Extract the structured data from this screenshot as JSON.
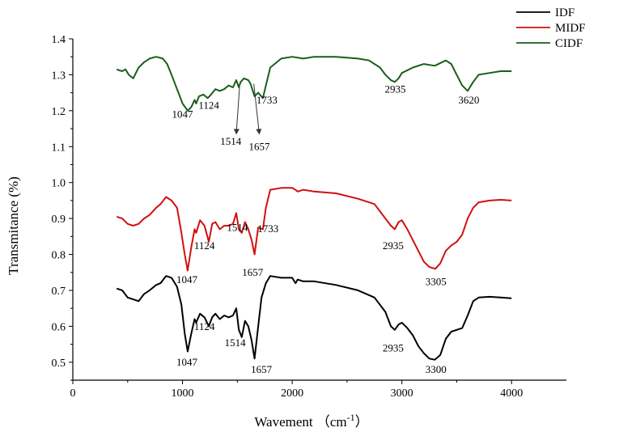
{
  "chart_data": {
    "type": "line",
    "xlabel": "Wavement （cm-1）",
    "xlabel_main": "Wavement （cm",
    "xlabel_sup": "-1",
    "xlabel_close": "）",
    "ylabel": "Transmitance (%)",
    "xlim": [
      0,
      4500
    ],
    "ylim": [
      0.45,
      1.4
    ],
    "xticks": [
      "0",
      "1000",
      "2000",
      "3000",
      "4000"
    ],
    "yticks": [
      "0.5",
      "0.6",
      "0.7",
      "0.8",
      "0.9",
      "1.0",
      "1.1",
      "1.2",
      "1.3",
      "1.4"
    ],
    "grid": false,
    "legend_position": "top-right outside",
    "series": [
      {
        "name": "IDF",
        "color": "#000000",
        "x": [
          400,
          450,
          500,
          550,
          600,
          650,
          700,
          760,
          800,
          850,
          900,
          950,
          990,
          1020,
          1047,
          1080,
          1110,
          1124,
          1160,
          1200,
          1240,
          1270,
          1300,
          1340,
          1380,
          1420,
          1460,
          1490,
          1514,
          1540,
          1570,
          1600,
          1630,
          1657,
          1690,
          1720,
          1760,
          1800,
          1900,
          2000,
          2030,
          2050,
          2100,
          2200,
          2400,
          2600,
          2750,
          2850,
          2900,
          2935,
          2970,
          3000,
          3050,
          3100,
          3150,
          3200,
          3250,
          3300,
          3350,
          3400,
          3450,
          3500,
          3550,
          3600,
          3650,
          3700,
          3800,
          3900,
          4000
        ],
        "y": [
          0.705,
          0.7,
          0.68,
          0.675,
          0.67,
          0.69,
          0.7,
          0.715,
          0.72,
          0.74,
          0.735,
          0.71,
          0.66,
          0.58,
          0.53,
          0.58,
          0.62,
          0.61,
          0.635,
          0.625,
          0.6,
          0.625,
          0.635,
          0.62,
          0.63,
          0.625,
          0.63,
          0.65,
          0.59,
          0.57,
          0.615,
          0.6,
          0.56,
          0.51,
          0.6,
          0.68,
          0.72,
          0.74,
          0.735,
          0.735,
          0.72,
          0.73,
          0.725,
          0.725,
          0.715,
          0.7,
          0.68,
          0.64,
          0.6,
          0.59,
          0.605,
          0.61,
          0.595,
          0.575,
          0.545,
          0.525,
          0.51,
          0.507,
          0.52,
          0.565,
          0.585,
          0.59,
          0.595,
          0.63,
          0.67,
          0.68,
          0.682,
          0.68,
          0.678
        ]
      },
      {
        "name": "MIDF",
        "color": "#d01010",
        "x": [
          400,
          450,
          500,
          550,
          600,
          650,
          700,
          760,
          800,
          850,
          900,
          950,
          990,
          1020,
          1047,
          1080,
          1110,
          1124,
          1160,
          1200,
          1240,
          1270,
          1300,
          1340,
          1380,
          1420,
          1460,
          1490,
          1514,
          1540,
          1570,
          1600,
          1630,
          1657,
          1690,
          1733,
          1760,
          1800,
          1900,
          2000,
          2030,
          2050,
          2100,
          2200,
          2400,
          2600,
          2750,
          2850,
          2900,
          2935,
          2970,
          3000,
          3050,
          3100,
          3150,
          3200,
          3250,
          3305,
          3350,
          3400,
          3450,
          3500,
          3550,
          3600,
          3650,
          3700,
          3800,
          3900,
          4000
        ],
        "y": [
          0.905,
          0.9,
          0.885,
          0.88,
          0.885,
          0.9,
          0.91,
          0.93,
          0.94,
          0.96,
          0.95,
          0.93,
          0.86,
          0.8,
          0.755,
          0.82,
          0.87,
          0.86,
          0.895,
          0.88,
          0.835,
          0.885,
          0.89,
          0.87,
          0.88,
          0.88,
          0.885,
          0.915,
          0.87,
          0.86,
          0.89,
          0.87,
          0.84,
          0.8,
          0.875,
          0.87,
          0.93,
          0.98,
          0.985,
          0.985,
          0.98,
          0.975,
          0.98,
          0.975,
          0.97,
          0.955,
          0.94,
          0.9,
          0.88,
          0.87,
          0.89,
          0.895,
          0.87,
          0.84,
          0.81,
          0.78,
          0.765,
          0.76,
          0.775,
          0.81,
          0.825,
          0.835,
          0.855,
          0.9,
          0.93,
          0.945,
          0.95,
          0.952,
          0.95
        ]
      },
      {
        "name": "CIDF",
        "color": "#1a5e1a",
        "x": [
          400,
          450,
          480,
          510,
          550,
          600,
          650,
          700,
          760,
          820,
          860,
          900,
          950,
          1000,
          1047,
          1080,
          1110,
          1124,
          1150,
          1190,
          1230,
          1260,
          1300,
          1340,
          1380,
          1420,
          1460,
          1490,
          1514,
          1530,
          1560,
          1600,
          1620,
          1657,
          1690,
          1733,
          1760,
          1800,
          1900,
          2000,
          2100,
          2200,
          2300,
          2400,
          2600,
          2700,
          2800,
          2850,
          2900,
          2935,
          2970,
          3000,
          3100,
          3200,
          3300,
          3400,
          3450,
          3500,
          3550,
          3600,
          3650,
          3700,
          3800,
          3900,
          4000
        ],
        "y": [
          1.315,
          1.31,
          1.315,
          1.3,
          1.29,
          1.32,
          1.335,
          1.345,
          1.35,
          1.345,
          1.33,
          1.3,
          1.26,
          1.22,
          1.2,
          1.21,
          1.23,
          1.22,
          1.24,
          1.245,
          1.235,
          1.245,
          1.26,
          1.255,
          1.26,
          1.27,
          1.265,
          1.285,
          1.265,
          1.28,
          1.29,
          1.285,
          1.275,
          1.24,
          1.25,
          1.235,
          1.27,
          1.32,
          1.345,
          1.35,
          1.345,
          1.35,
          1.35,
          1.35,
          1.345,
          1.34,
          1.32,
          1.3,
          1.285,
          1.28,
          1.29,
          1.305,
          1.32,
          1.33,
          1.325,
          1.34,
          1.33,
          1.3,
          1.27,
          1.255,
          1.28,
          1.3,
          1.305,
          1.31,
          1.31
        ]
      }
    ],
    "annotations": [
      {
        "text": "1047",
        "x": 1000,
        "y": 1.18
      },
      {
        "text": "1124",
        "x": 1240,
        "y": 1.205
      },
      {
        "text": "1514",
        "x": 1440,
        "y": 1.105
      },
      {
        "text": "1657",
        "x": 1700,
        "y": 1.09
      },
      {
        "text": "1733",
        "x": 1770,
        "y": 1.22
      },
      {
        "text": "2935",
        "x": 2940,
        "y": 1.25
      },
      {
        "text": "3620",
        "x": 3610,
        "y": 1.22
      },
      {
        "text": "1124",
        "x": 1200,
        "y": 0.815
      },
      {
        "text": "1514",
        "x": 1500,
        "y": 0.865
      },
      {
        "text": "1733",
        "x": 1780,
        "y": 0.862
      },
      {
        "text": "1047",
        "x": 1040,
        "y": 0.72
      },
      {
        "text": "1657",
        "x": 1640,
        "y": 0.74
      },
      {
        "text": "2935",
        "x": 2920,
        "y": 0.815
      },
      {
        "text": "3305",
        "x": 3310,
        "y": 0.715
      },
      {
        "text": "1124",
        "x": 1200,
        "y": 0.59
      },
      {
        "text": "1514",
        "x": 1480,
        "y": 0.545
      },
      {
        "text": "2935",
        "x": 2920,
        "y": 0.53
      },
      {
        "text": "3300",
        "x": 3310,
        "y": 0.47
      },
      {
        "text": "1047",
        "x": 1040,
        "y": 0.49
      },
      {
        "text": "1657",
        "x": 1720,
        "y": 0.47
      }
    ],
    "arrows": [
      {
        "from": [
          1520,
          1.265
        ],
        "to": [
          1490,
          1.135
        ]
      },
      {
        "from": [
          1650,
          1.275
        ],
        "to": [
          1700,
          1.135
        ]
      }
    ]
  }
}
